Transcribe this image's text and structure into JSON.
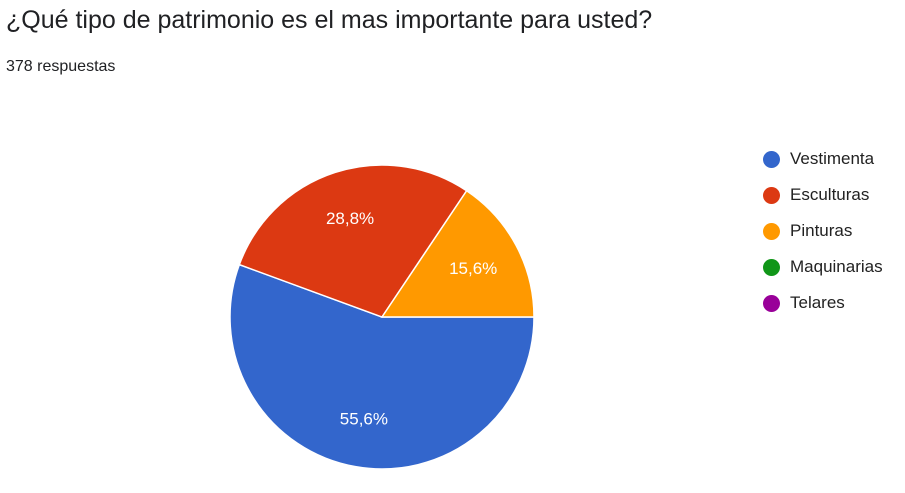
{
  "header": {
    "title": "¿Qué tipo de patrimonio es el mas importante para usted?",
    "responses": "378 respuestas"
  },
  "chart_data": {
    "type": "pie",
    "title": "¿Qué tipo de patrimonio es el mas importante para usted?",
    "subtitle": "378 respuestas",
    "legend_position": "right",
    "slices": [
      {
        "label": "Vestimenta",
        "value": 55.6,
        "display": "55,6%",
        "color": "#3366cc"
      },
      {
        "label": "Esculturas",
        "value": 28.8,
        "display": "28,8%",
        "color": "#dc3912"
      },
      {
        "label": "Pinturas",
        "value": 15.6,
        "display": "15,6%",
        "color": "#ff9900"
      },
      {
        "label": "Maquinarias",
        "value": 0,
        "display": "",
        "color": "#109618"
      },
      {
        "label": "Telares",
        "value": 0,
        "display": "",
        "color": "#990099"
      }
    ]
  }
}
